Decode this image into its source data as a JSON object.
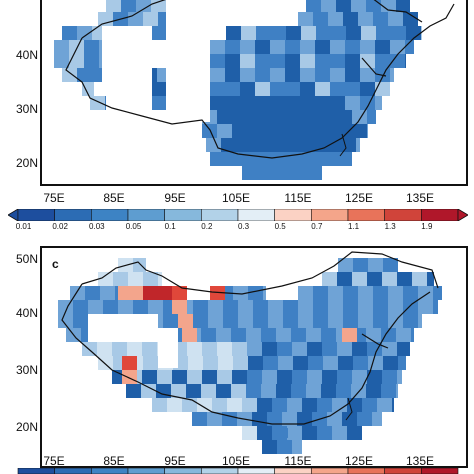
{
  "panels": [
    {
      "id": "top",
      "letter": "",
      "y_ticks": [
        "40N",
        "30N",
        "20N"
      ],
      "x_ticks": [
        "75E",
        "85E",
        "95E",
        "105E",
        "115E",
        "125E",
        "135E"
      ]
    },
    {
      "id": "bottom",
      "letter": "c",
      "y_ticks": [
        "50N",
        "40N",
        "30N",
        "20N"
      ],
      "x_ticks": [
        "75E",
        "85E",
        "95E",
        "105E",
        "115E",
        "125E",
        "135E"
      ]
    }
  ],
  "colorbar": {
    "labels": [
      "0.01",
      "0.02",
      "0.03",
      "0.05",
      "0.1",
      "0.2",
      "0.3",
      "0.5",
      "0.7",
      "1.1",
      "1.3",
      "1.9"
    ],
    "colors": [
      "#1d4e9e",
      "#2c6cb4",
      "#3d83c4",
      "#5e9dd0",
      "#86b8dc",
      "#b2d2e8",
      "#e3eef6",
      "#fbd2c4",
      "#f4a58a",
      "#e8735a",
      "#d0443a",
      "#b0172a"
    ]
  },
  "map_colors": {
    "dark": "#1f5fa8",
    "mid": "#3f80c4",
    "light": "#6fa3d6",
    "pale": "#a8c9e6",
    "palest": "#cfe2f1",
    "salmon": "#f3a58c",
    "red": "#e0473a",
    "darkred": "#c0262a"
  }
}
